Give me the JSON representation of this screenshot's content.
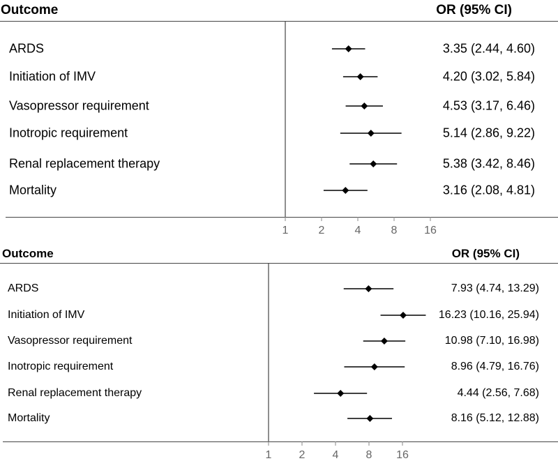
{
  "chart_data": [
    {
      "type": "forest",
      "header_left": "Outcome",
      "header_right": "OR (95% CI)",
      "x_scale": "log2",
      "reference_line": 1,
      "xticks": [
        1,
        2,
        4,
        8,
        16
      ],
      "xtick_labels": [
        "1",
        "2",
        "4",
        "8",
        "16"
      ],
      "rows": [
        {
          "label": "ARDS",
          "or": 3.35,
          "lo": 2.44,
          "hi": 4.6,
          "ci_text": "3.35 (2.44, 4.60)"
        },
        {
          "label": "Initiation of IMV",
          "or": 4.2,
          "lo": 3.02,
          "hi": 5.84,
          "ci_text": "4.20 (3.02, 5.84)"
        },
        {
          "label": "Vasopressor requirement",
          "or": 4.53,
          "lo": 3.17,
          "hi": 6.46,
          "ci_text": "4.53 (3.17, 6.46)"
        },
        {
          "label": "Inotropic requirement",
          "or": 5.14,
          "lo": 2.86,
          "hi": 9.22,
          "ci_text": "5.14 (2.86, 9.22)"
        },
        {
          "label": "Renal replacement therapy",
          "or": 5.38,
          "lo": 3.42,
          "hi": 8.46,
          "ci_text": "5.38 (3.42, 8.46)"
        },
        {
          "label": "Mortality",
          "or": 3.16,
          "lo": 2.08,
          "hi": 4.81,
          "ci_text": "3.16 (2.08, 4.81)"
        }
      ]
    },
    {
      "type": "forest",
      "header_left": "Outcome",
      "header_right": "OR (95% CI)",
      "x_scale": "log2",
      "reference_line": 1,
      "xticks": [
        1,
        2,
        4,
        8,
        16
      ],
      "xtick_labels": [
        "1",
        "2",
        "4",
        "8",
        "16"
      ],
      "rows": [
        {
          "label": "ARDS",
          "or": 7.93,
          "lo": 4.74,
          "hi": 13.29,
          "ci_text": "7.93 (4.74, 13.29)"
        },
        {
          "label": "Initiation of IMV",
          "or": 16.23,
          "lo": 10.16,
          "hi": 25.94,
          "ci_text": "16.23 (10.16, 25.94)"
        },
        {
          "label": "Vasopressor requirement",
          "or": 10.98,
          "lo": 7.1,
          "hi": 16.98,
          "ci_text": "10.98 (7.10, 16.98)"
        },
        {
          "label": "Inotropic requirement",
          "or": 8.96,
          "lo": 4.79,
          "hi": 16.76,
          "ci_text": "8.96 (4.79, 16.76)"
        },
        {
          "label": "Renal replacement therapy",
          "or": 4.44,
          "lo": 2.56,
          "hi": 7.68,
          "ci_text": "4.44 (2.56, 7.68)"
        },
        {
          "label": "Mortality",
          "or": 8.16,
          "lo": 5.12,
          "hi": 12.88,
          "ci_text": "8.16 (5.12, 12.88)"
        }
      ]
    }
  ]
}
